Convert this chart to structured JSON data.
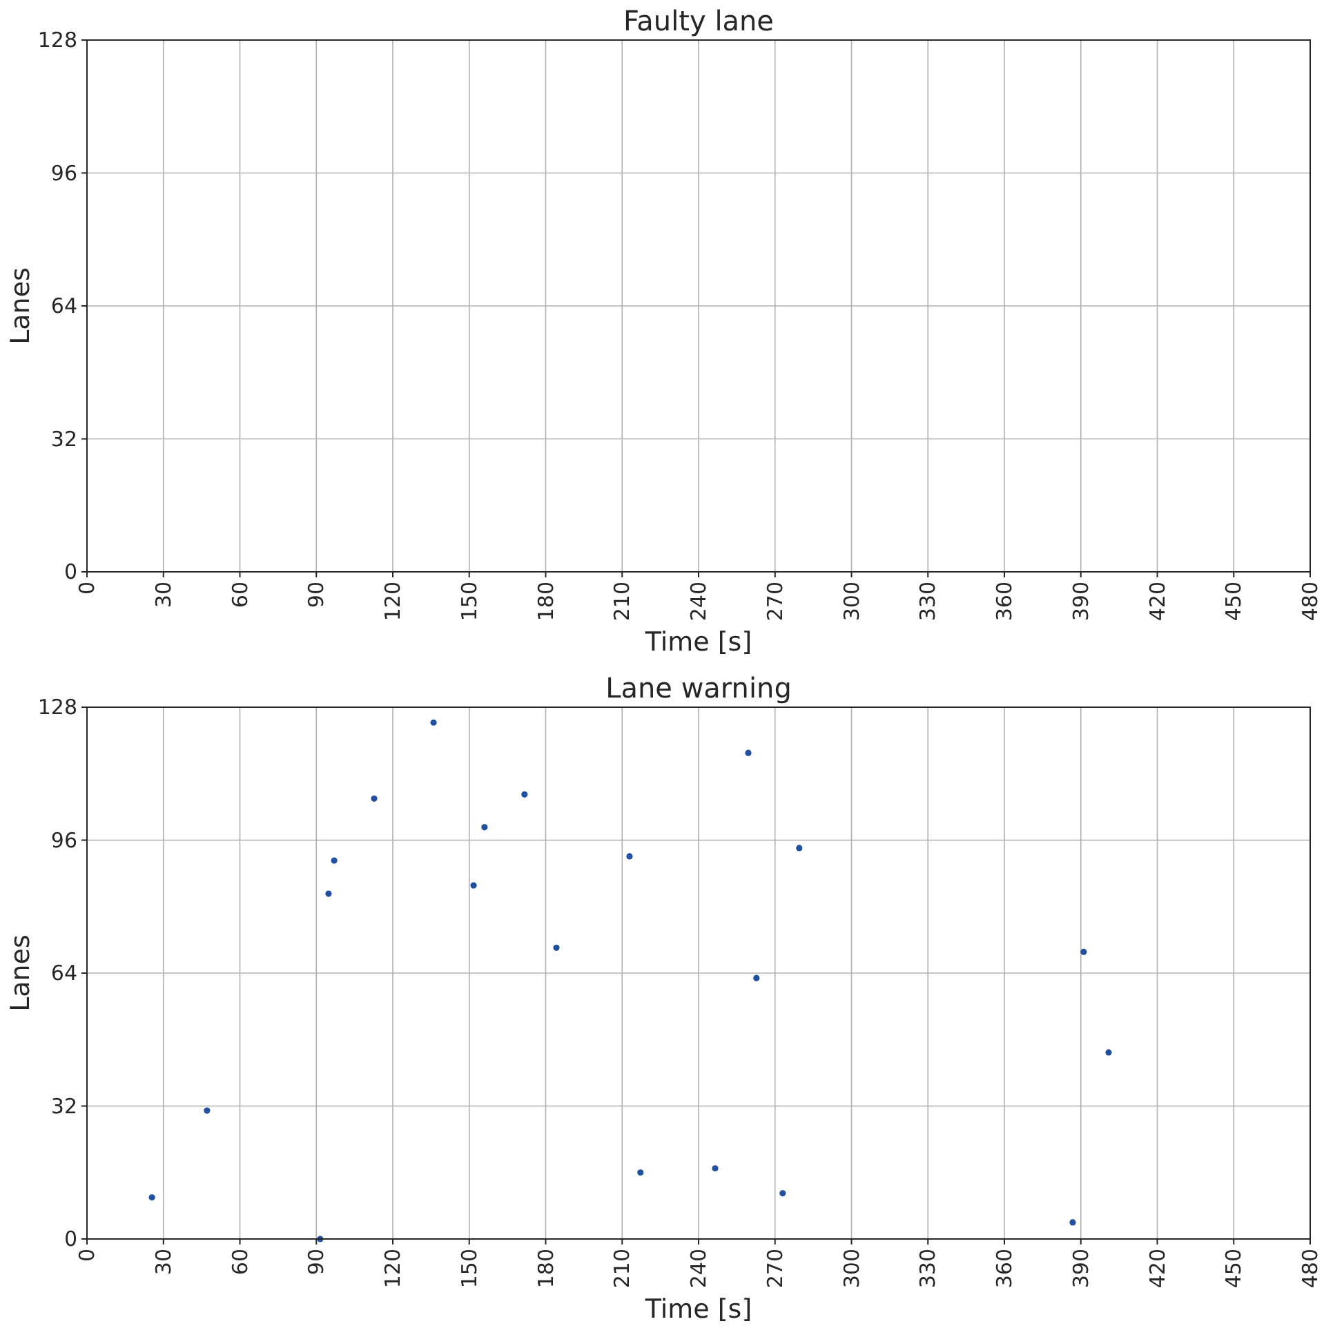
{
  "chart_data": [
    {
      "type": "scatter",
      "title": "Faulty lane",
      "xlabel": "Time [s]",
      "ylabel": "Lanes",
      "xlim": [
        0,
        480
      ],
      "xticks": [
        0,
        30,
        60,
        90,
        120,
        150,
        180,
        210,
        240,
        270,
        300,
        330,
        360,
        390,
        420,
        450,
        480
      ],
      "ylim": [
        0,
        128
      ],
      "yticks": [
        0,
        32,
        64,
        96,
        128
      ],
      "grid": true
    },
    {
      "type": "scatter",
      "title": "Lane warning",
      "xlabel": "Time [s]",
      "ylabel": "Lanes",
      "xlim": [
        0,
        480
      ],
      "xticks": [
        0,
        30,
        60,
        90,
        120,
        150,
        180,
        210,
        240,
        270,
        300,
        330,
        360,
        390,
        420,
        450,
        480
      ],
      "ylim": [
        0,
        128
      ],
      "yticks": [
        0,
        32,
        64,
        96,
        128
      ],
      "grid": true,
      "marker": "circle",
      "color": "#2150a0",
      "x": [
        25.5,
        47.1,
        91.5,
        94.8,
        97,
        112.7,
        136,
        151.7,
        156,
        171.7,
        184.2,
        212.9,
        217.2,
        246.5,
        259.5,
        262.7,
        273,
        279.5,
        386.8,
        391.1,
        400.9
      ],
      "values": [
        10,
        30.9,
        0,
        83.1,
        91.1,
        106,
        124.3,
        85.1,
        99.1,
        107,
        70.1,
        92.1,
        16,
        17,
        117,
        62.8,
        11,
        94.1,
        4,
        69.1,
        44.9
      ]
    }
  ]
}
